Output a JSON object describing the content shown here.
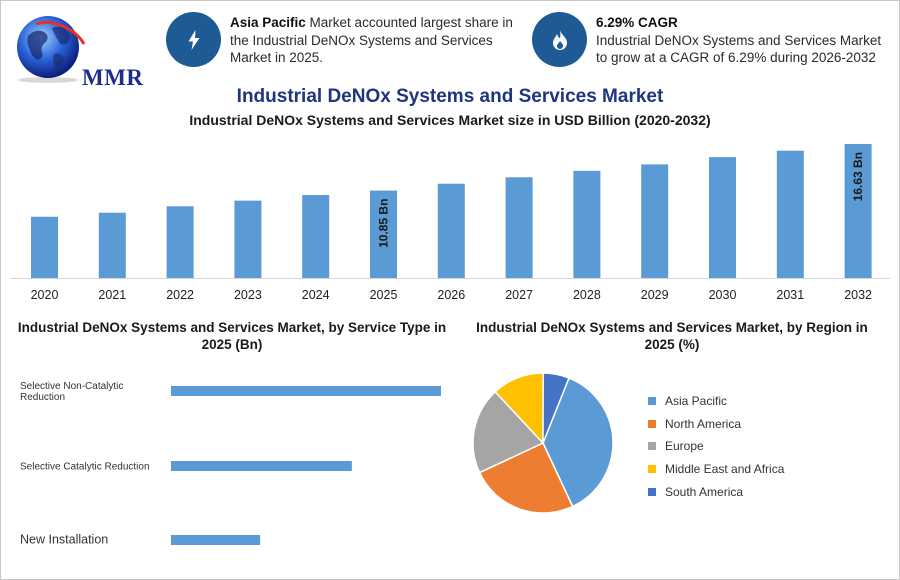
{
  "logo": {
    "text": "MMR"
  },
  "stats": [
    {
      "icon": "lightning-icon",
      "bold": "Asia Pacific",
      "text": " Market accounted largest share in the Industrial DeNOx Systems and Services Market in 2025."
    },
    {
      "icon": "flame-icon",
      "bold": "6.29% CAGR",
      "text": "Industrial DeNOx Systems and Services Market to grow at a CAGR of 6.29% during 2026-2032"
    }
  ],
  "title": "Industrial DeNOx Systems and Services Market",
  "subtitle": "Industrial DeNOx Systems and Services Market size in USD Billion (2020-2032)",
  "colors": {
    "bar": "#5b9bd5",
    "title": "#1f3580",
    "icon_bg": "#1e5b95"
  },
  "chart_data": [
    {
      "type": "bar",
      "title": "Industrial DeNOx Systems and Services Market size in USD Billion (2020-2032)",
      "categories": [
        "2020",
        "2021",
        "2022",
        "2023",
        "2024",
        "2025",
        "2026",
        "2027",
        "2028",
        "2029",
        "2030",
        "2031",
        "2032"
      ],
      "values": [
        7.6,
        8.1,
        8.9,
        9.6,
        10.3,
        10.85,
        11.7,
        12.5,
        13.3,
        14.1,
        15.0,
        15.8,
        16.63
      ],
      "labels": {
        "2025": "10.85 Bn",
        "2032": "16.63 Bn"
      },
      "ylim": [
        0,
        17
      ],
      "xlabel": "",
      "ylabel": ""
    },
    {
      "type": "bar",
      "orientation": "horizontal",
      "title": "Industrial DeNOx Systems and Services Market, by Service Type in 2025 (Bn)",
      "categories": [
        "Selective Non-Catalytic Reduction",
        "Selective Catalytic Reduction",
        "New Installation"
      ],
      "category_lines": [
        [
          "Selective Non-Catalytic",
          "Reduction"
        ],
        [
          "Selective Catalytic Reduction"
        ],
        [
          "New Installation"
        ]
      ],
      "values": [
        5.3,
        3.55,
        1.75
      ],
      "xlim": [
        0,
        5.3
      ]
    },
    {
      "type": "pie",
      "title": "Industrial DeNOx Systems and Services Market, by Region in 2025 (%)",
      "slices": [
        {
          "label": "Asia Pacific",
          "value": 37,
          "color": "#5b9bd5"
        },
        {
          "label": "North America",
          "value": 25,
          "color": "#ed7d31"
        },
        {
          "label": "Europe",
          "value": 20,
          "color": "#a5a5a5"
        },
        {
          "label": "Middle East and Africa",
          "value": 12,
          "color": "#ffc000"
        },
        {
          "label": "South America",
          "value": 6,
          "color": "#4472c4"
        }
      ]
    }
  ]
}
